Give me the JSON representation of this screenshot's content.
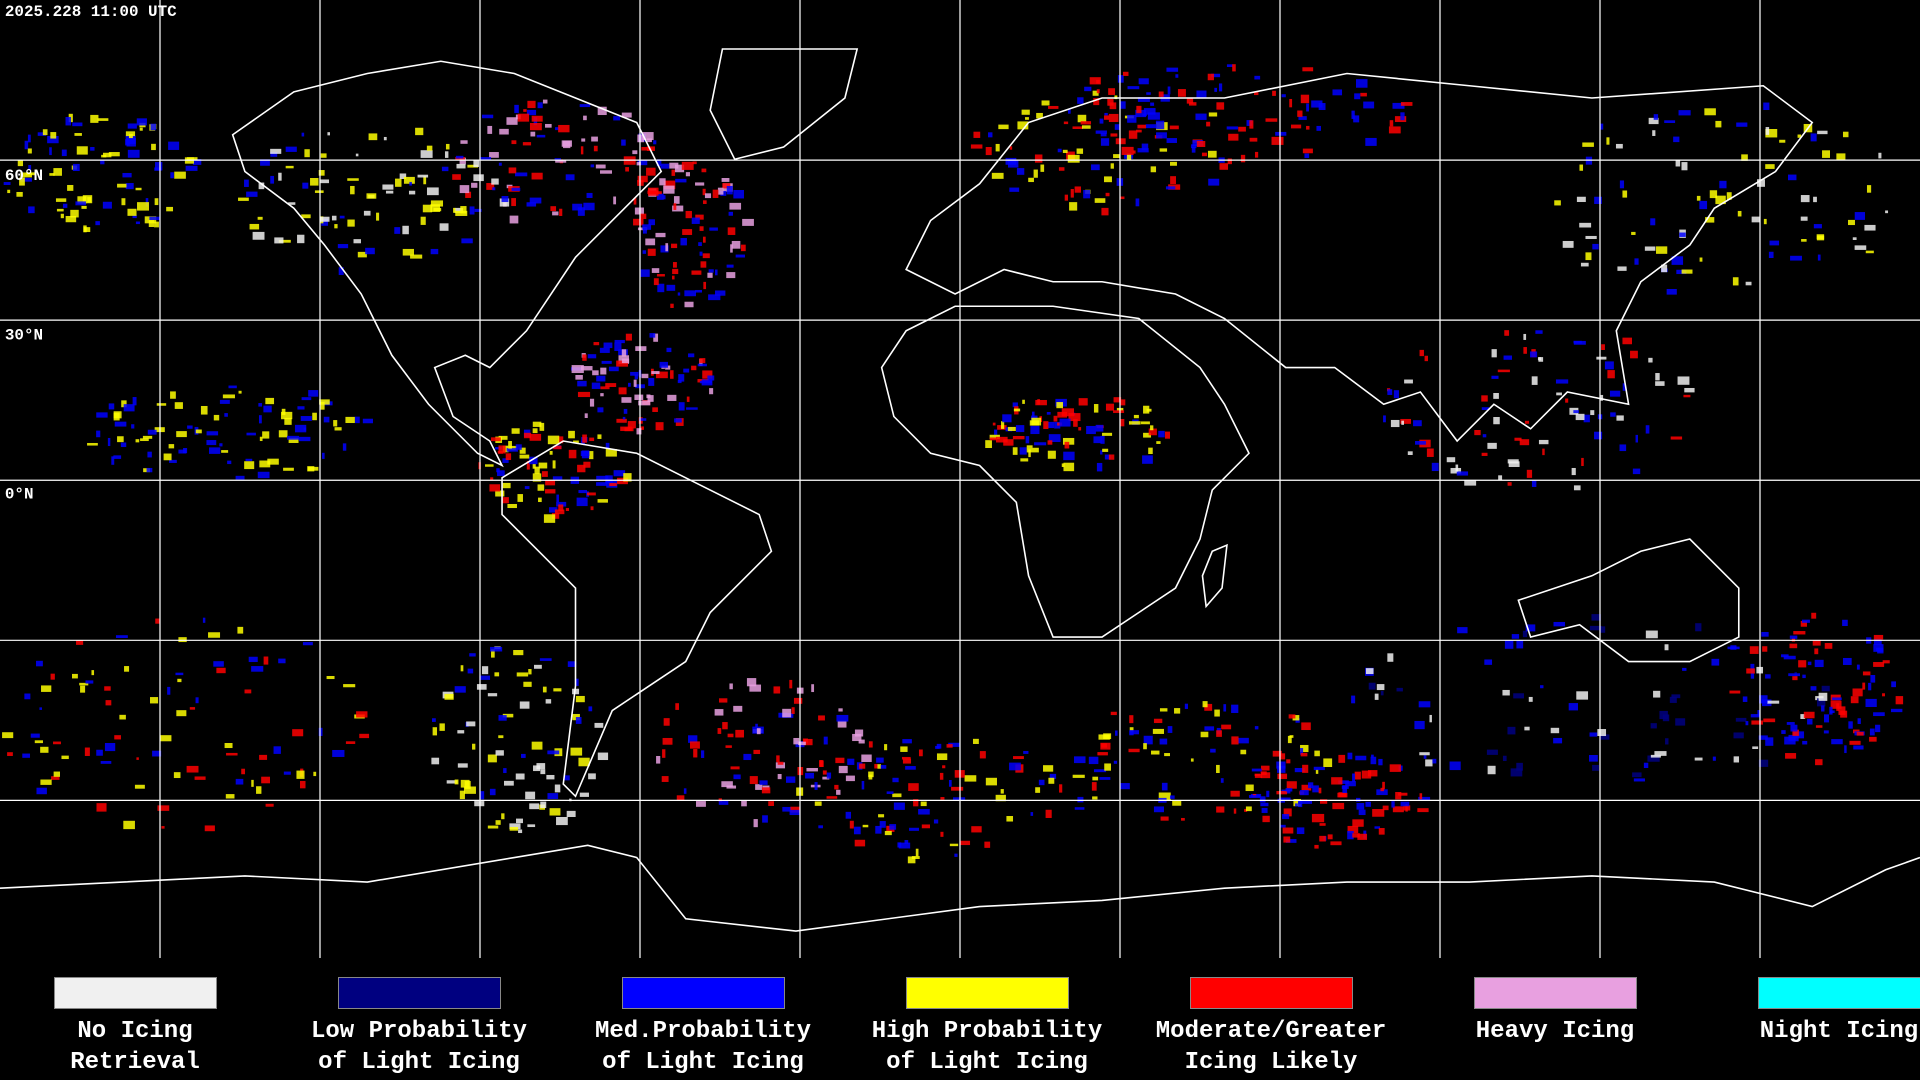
{
  "header": {
    "timestamp": "2025.228 11:00 UTC"
  },
  "map": {
    "lat_labels": [
      "60°N",
      "30°N",
      "0°N"
    ]
  },
  "legend": {
    "items": [
      {
        "lines": [
          "No Icing",
          "Retrieval"
        ],
        "color": "#f0f0f0"
      },
      {
        "lines": [
          "Low Probability",
          "of Light Icing"
        ],
        "color": "#000080"
      },
      {
        "lines": [
          "Med.Probability",
          "of Light Icing"
        ],
        "color": "#0000ff"
      },
      {
        "lines": [
          "High Probability",
          "of Light Icing"
        ],
        "color": "#ffff00"
      },
      {
        "lines": [
          "Moderate/Greater",
          "Icing Likely"
        ],
        "color": "#ff0000"
      },
      {
        "lines": [
          "Heavy Icing"
        ],
        "color": "#e8a0e0"
      },
      {
        "lines": [
          "Night Icing"
        ],
        "color": "#00ffff"
      }
    ]
  }
}
